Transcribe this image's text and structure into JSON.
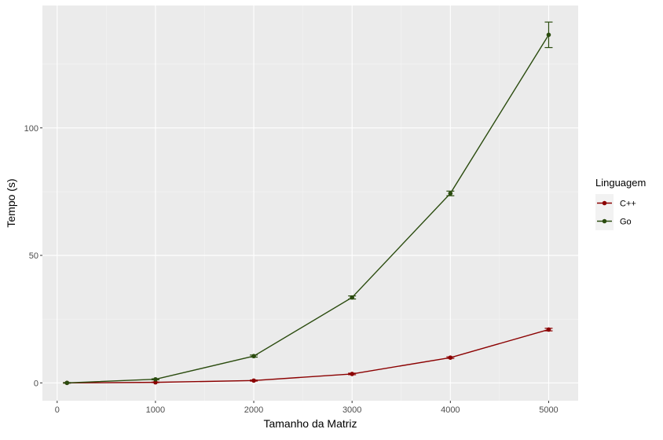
{
  "chart_data": {
    "type": "line",
    "title": "",
    "xlabel": "Tamanho da Matriz",
    "ylabel": "Tempo (s)",
    "xlim": [
      -150,
      5300
    ],
    "ylim": [
      -7,
      148
    ],
    "x_ticks": [
      0,
      1000,
      2000,
      3000,
      4000,
      5000
    ],
    "x_tick_labels": [
      "0",
      "1000",
      "2000",
      "3000",
      "4000",
      "5000"
    ],
    "y_ticks": [
      0,
      50,
      100
    ],
    "y_tick_labels": [
      "0",
      "50",
      "100"
    ],
    "grid": true,
    "legend_position": "right",
    "legend_title": "Linguagem",
    "x": [
      100,
      1000,
      2000,
      3000,
      4000,
      5000
    ],
    "series": [
      {
        "name": "C++",
        "color": "#8b0000",
        "values": [
          0.0,
          0.2,
          0.9,
          3.5,
          9.9,
          20.9
        ],
        "error": [
          0.1,
          0.1,
          0.2,
          0.3,
          0.3,
          0.5
        ]
      },
      {
        "name": "Go",
        "color": "#2b4c0f",
        "values": [
          0.0,
          1.4,
          10.5,
          33.5,
          74.3,
          136.5
        ],
        "error": [
          0.1,
          0.2,
          0.4,
          0.6,
          0.9,
          5.0
        ]
      }
    ],
    "colors": {
      "panel_background": "#ebebeb",
      "grid_major": "#ffffff",
      "grid_minor": "#f5f5f5"
    }
  }
}
